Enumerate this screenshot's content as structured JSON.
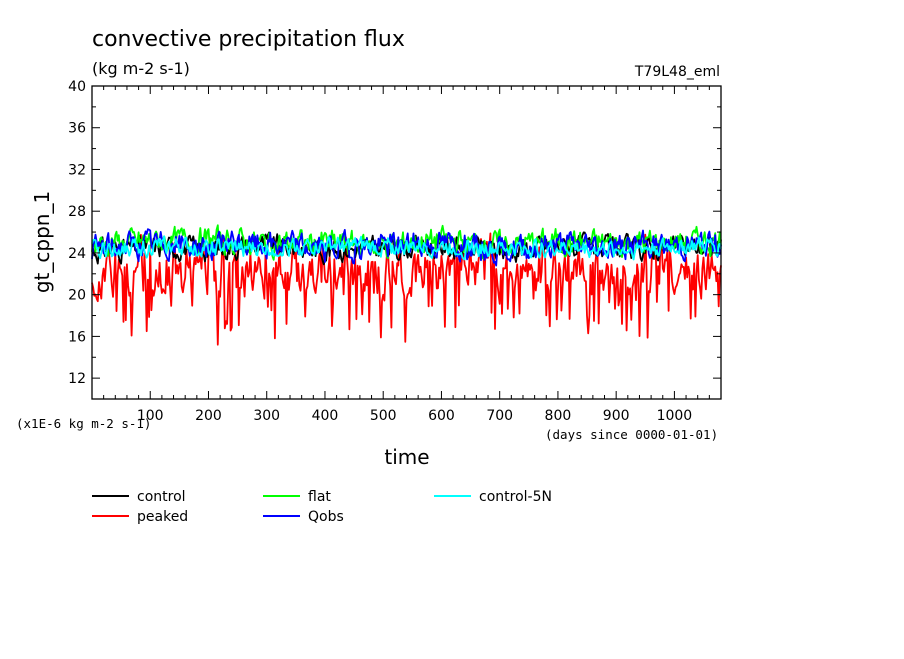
{
  "chart_data": {
    "type": "line",
    "title": "convective precipitation flux",
    "units": "(kg m-2 s-1)",
    "run_label": "T79L48_eml",
    "ylabel": "gt_cppn_1",
    "xlabel": "time",
    "y_scale_note": "(x1E-6 kg m-2 s-1)",
    "x_unit_note": "(days since 0000-01-01)",
    "xlim": [
      0,
      1080
    ],
    "ylim": [
      10,
      40
    ],
    "x_ticks": [
      100,
      200,
      300,
      400,
      500,
      600,
      700,
      800,
      900,
      1000
    ],
    "y_ticks": [
      12,
      16,
      20,
      24,
      28,
      32,
      36,
      40
    ],
    "grid": false,
    "legend_position": "below",
    "series": [
      {
        "name": "control",
        "color": "#000000",
        "mean": 24.5,
        "amp": 1.7,
        "x": [
          0,
          100,
          200,
          300,
          400,
          500,
          600,
          700,
          800,
          900,
          1000,
          1080
        ],
        "values": [
          24.2,
          24.6,
          24.4,
          24.8,
          24.3,
          24.5,
          24.6,
          24.2,
          24.7,
          24.4,
          24.5,
          24.6
        ]
      },
      {
        "name": "peaked",
        "color": "#ff0000",
        "mean": 22.4,
        "amp": 3.2,
        "x": [
          0,
          100,
          200,
          300,
          400,
          500,
          600,
          700,
          800,
          900,
          1000,
          1080
        ],
        "values": [
          21.8,
          22.4,
          22.1,
          22.6,
          22.3,
          22.0,
          22.5,
          22.2,
          22.6,
          22.1,
          22.4,
          22.3
        ]
      },
      {
        "name": "flat",
        "color": "#00ff00",
        "mean": 24.9,
        "amp": 1.9,
        "x": [
          0,
          100,
          200,
          300,
          400,
          500,
          600,
          700,
          800,
          900,
          1000,
          1080
        ],
        "values": [
          24.8,
          25.1,
          25.3,
          24.9,
          25.0,
          24.7,
          25.2,
          24.8,
          25.1,
          24.9,
          25.0,
          25.2
        ]
      },
      {
        "name": "Qobs",
        "color": "#0000ff",
        "mean": 24.6,
        "amp": 2.0,
        "x": [
          0,
          100,
          200,
          300,
          400,
          500,
          600,
          700,
          800,
          900,
          1000,
          1080
        ],
        "values": [
          24.4,
          24.9,
          24.6,
          24.8,
          24.5,
          24.7,
          24.9,
          24.3,
          24.8,
          24.6,
          24.7,
          24.9
        ]
      },
      {
        "name": "control-5N",
        "color": "#00ffff",
        "mean": 24.5,
        "amp": 1.3,
        "x": [
          0,
          100,
          200,
          300,
          400,
          500,
          600,
          700,
          800,
          900,
          1000,
          1080
        ],
        "values": [
          24.3,
          24.6,
          24.5,
          24.4,
          24.7,
          24.5,
          24.6,
          24.4,
          24.5,
          24.3,
          24.6,
          24.7
        ]
      }
    ],
    "legend": [
      {
        "name": "control",
        "color": "#000000"
      },
      {
        "name": "flat",
        "color": "#00ff00"
      },
      {
        "name": "control-5N",
        "color": "#00ffff"
      },
      {
        "name": "peaked",
        "color": "#ff0000"
      },
      {
        "name": "Qobs",
        "color": "#0000ff"
      }
    ]
  }
}
